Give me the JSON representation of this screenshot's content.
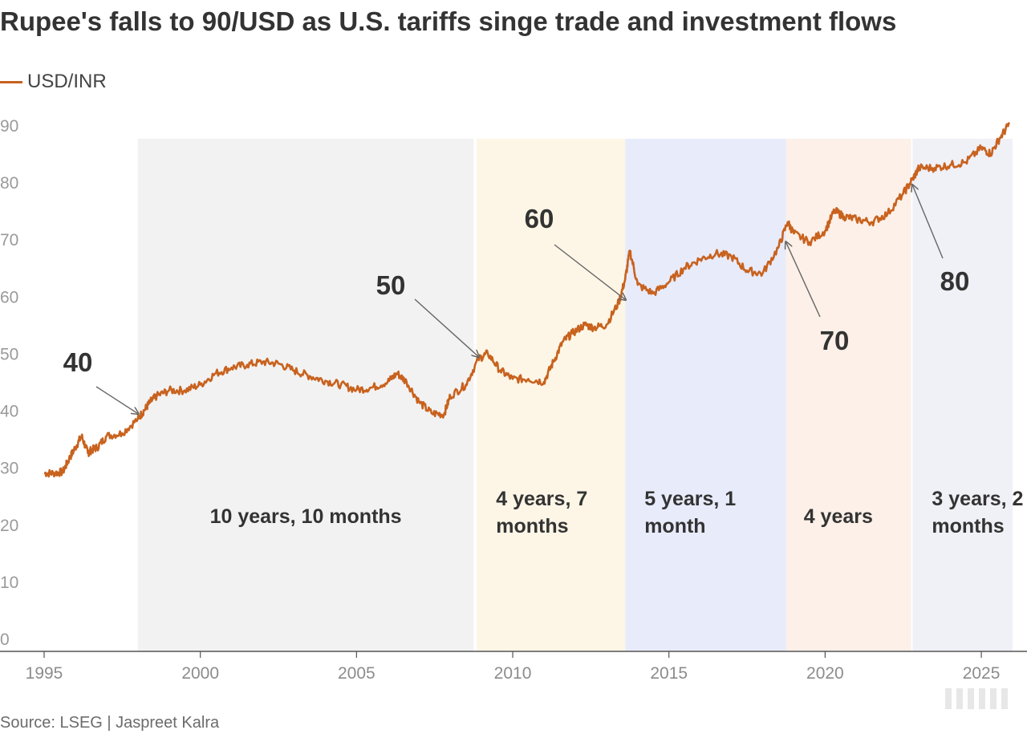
{
  "title": "Rupee's falls to 90/USD as U.S. tariffs singe trade and investment flows",
  "source": "Source: LSEG | Jaspreet Kalra",
  "colors": {
    "line": "#c8621e",
    "axis": "#555555"
  },
  "chart_data": {
    "type": "line",
    "title": "Rupee's falls to 90/USD as U.S. tariffs singe trade and investment flows",
    "legend": {
      "placement": "top-left"
    },
    "series": [
      {
        "name": "USD/INR",
        "x": [
          1995.0,
          1995.3,
          1995.6,
          1995.8,
          1996.0,
          1996.2,
          1996.4,
          1996.5,
          1996.7,
          1997.0,
          1997.5,
          1998.0,
          1998.2,
          1998.4,
          1998.6,
          1999.0,
          1999.5,
          2000.0,
          2000.5,
          2001.0,
          2001.5,
          2002.0,
          2002.5,
          2003.0,
          2003.5,
          2004.0,
          2004.5,
          2005.0,
          2005.5,
          2006.0,
          2006.3,
          2006.6,
          2007.0,
          2007.4,
          2007.8,
          2008.0,
          2008.5,
          2008.9,
          2009.2,
          2009.6,
          2010.0,
          2010.5,
          2011.0,
          2011.3,
          2011.6,
          2011.9,
          2012.3,
          2012.6,
          2013.0,
          2013.4,
          2013.6,
          2013.75,
          2014.0,
          2014.5,
          2015.0,
          2015.5,
          2016.0,
          2016.5,
          2017.0,
          2017.5,
          2018.0,
          2018.5,
          2018.8,
          2019.0,
          2019.5,
          2020.0,
          2020.3,
          2020.6,
          2021.0,
          2021.5,
          2022.0,
          2022.5,
          2022.8,
          2023.0,
          2023.5,
          2024.0,
          2024.5,
          2025.0,
          2025.3,
          2025.6,
          2025.9
        ],
        "values": [
          29.0,
          29.0,
          29.2,
          31.5,
          33.5,
          35.5,
          32.5,
          33.0,
          33.5,
          35.5,
          36.0,
          38.5,
          40.0,
          41.5,
          42.5,
          43.5,
          43.5,
          44.5,
          46.5,
          47.5,
          48.0,
          48.5,
          48.2,
          47.0,
          46.0,
          45.2,
          44.5,
          43.6,
          44.0,
          45.0,
          46.5,
          45.0,
          41.5,
          39.5,
          39.3,
          42.5,
          44.5,
          49.0,
          50.0,
          47.0,
          45.5,
          45.5,
          45.0,
          48.5,
          52.0,
          53.5,
          55.0,
          54.5,
          55.0,
          59.0,
          63.0,
          68.0,
          62.0,
          60.5,
          62.5,
          65.0,
          66.5,
          67.5,
          67.0,
          64.5,
          64.0,
          68.5,
          73.0,
          71.0,
          69.5,
          71.5,
          75.0,
          74.0,
          73.5,
          73.0,
          74.5,
          78.0,
          80.5,
          82.5,
          82.5,
          83.0,
          83.5,
          86.0,
          85.0,
          87.8,
          90.2
        ]
      }
    ],
    "xlim": [
      1995,
      2026
    ],
    "ylim": [
      0,
      90
    ],
    "x_ticks": [
      "1995",
      "2000",
      "2005",
      "2010",
      "2015",
      "2020",
      "2025"
    ],
    "y_ticks": [
      "0",
      "10",
      "20",
      "30",
      "40",
      "50",
      "60",
      "70",
      "80",
      "90"
    ],
    "grid": false,
    "bands": [
      {
        "start": 1998.0,
        "end": 2008.75,
        "label_lines": [
          "10 years, 10 months"
        ],
        "color": "#f2f2f2"
      },
      {
        "start": 2008.85,
        "end": 2013.6,
        "label_lines": [
          "4 years, 7",
          "months"
        ],
        "color": "#fdf6e6"
      },
      {
        "start": 2013.6,
        "end": 2018.75,
        "label_lines": [
          "5 years, 1",
          "month"
        ],
        "color": "#e8ebfa"
      },
      {
        "start": 2018.75,
        "end": 2022.75,
        "label_lines": [
          "4 years"
        ],
        "color": "#fcf0e8"
      },
      {
        "start": 2022.8,
        "end": 2026.0,
        "label_lines": [
          "3 years, 2",
          "months"
        ],
        "color": "#f0f0f7"
      }
    ],
    "milestones": [
      {
        "label": "40",
        "x": 1998.0,
        "y": 40
      },
      {
        "label": "50",
        "x": 2008.9,
        "y": 50
      },
      {
        "label": "60",
        "x": 2013.6,
        "y": 60
      },
      {
        "label": "70",
        "x": 2018.75,
        "y": 70
      },
      {
        "label": "80",
        "x": 2022.8,
        "y": 80
      }
    ]
  }
}
